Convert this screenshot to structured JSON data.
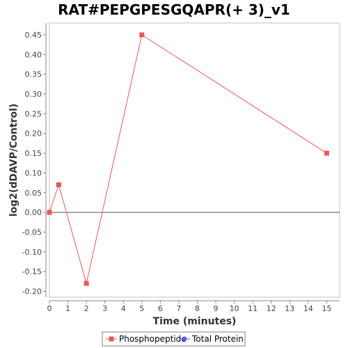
{
  "chart_data": {
    "type": "line",
    "title": "RAT#PEPGPESGQAPR(+ 3)_v1",
    "xlabel": "Time (minutes)",
    "ylabel": "log2(dDAVP/Control)",
    "xlim": [
      0,
      15.7
    ],
    "ylim": [
      -0.215,
      0.48
    ],
    "x_ticks": [
      0,
      1,
      2,
      3,
      4,
      5,
      6,
      7,
      8,
      9,
      10,
      11,
      12,
      13,
      14,
      15
    ],
    "y_ticks": [
      -0.2,
      -0.15,
      -0.1,
      -0.05,
      0.0,
      0.05,
      0.1,
      0.15,
      0.2,
      0.25,
      0.3,
      0.35,
      0.4,
      0.45
    ],
    "y_tick_labels": [
      "-0.20",
      "-0.15",
      "-0.10",
      "-0.05",
      "0.00",
      "0.05",
      "0.10",
      "0.15",
      "0.20",
      "0.25",
      "0.30",
      "0.35",
      "0.40",
      "0.45"
    ],
    "grid": false,
    "zero_line": true,
    "legend_position": "bottom",
    "series": [
      {
        "name": "Phosphopeptide",
        "color": "#e8585a",
        "marker": "square",
        "x": [
          0,
          0.5,
          2,
          5,
          15
        ],
        "y": [
          0.0,
          0.07,
          -0.18,
          0.45,
          0.15
        ]
      },
      {
        "name": "Total Protein",
        "color": "#5b5bf0",
        "marker": "circle",
        "x": [],
        "y": []
      }
    ]
  }
}
